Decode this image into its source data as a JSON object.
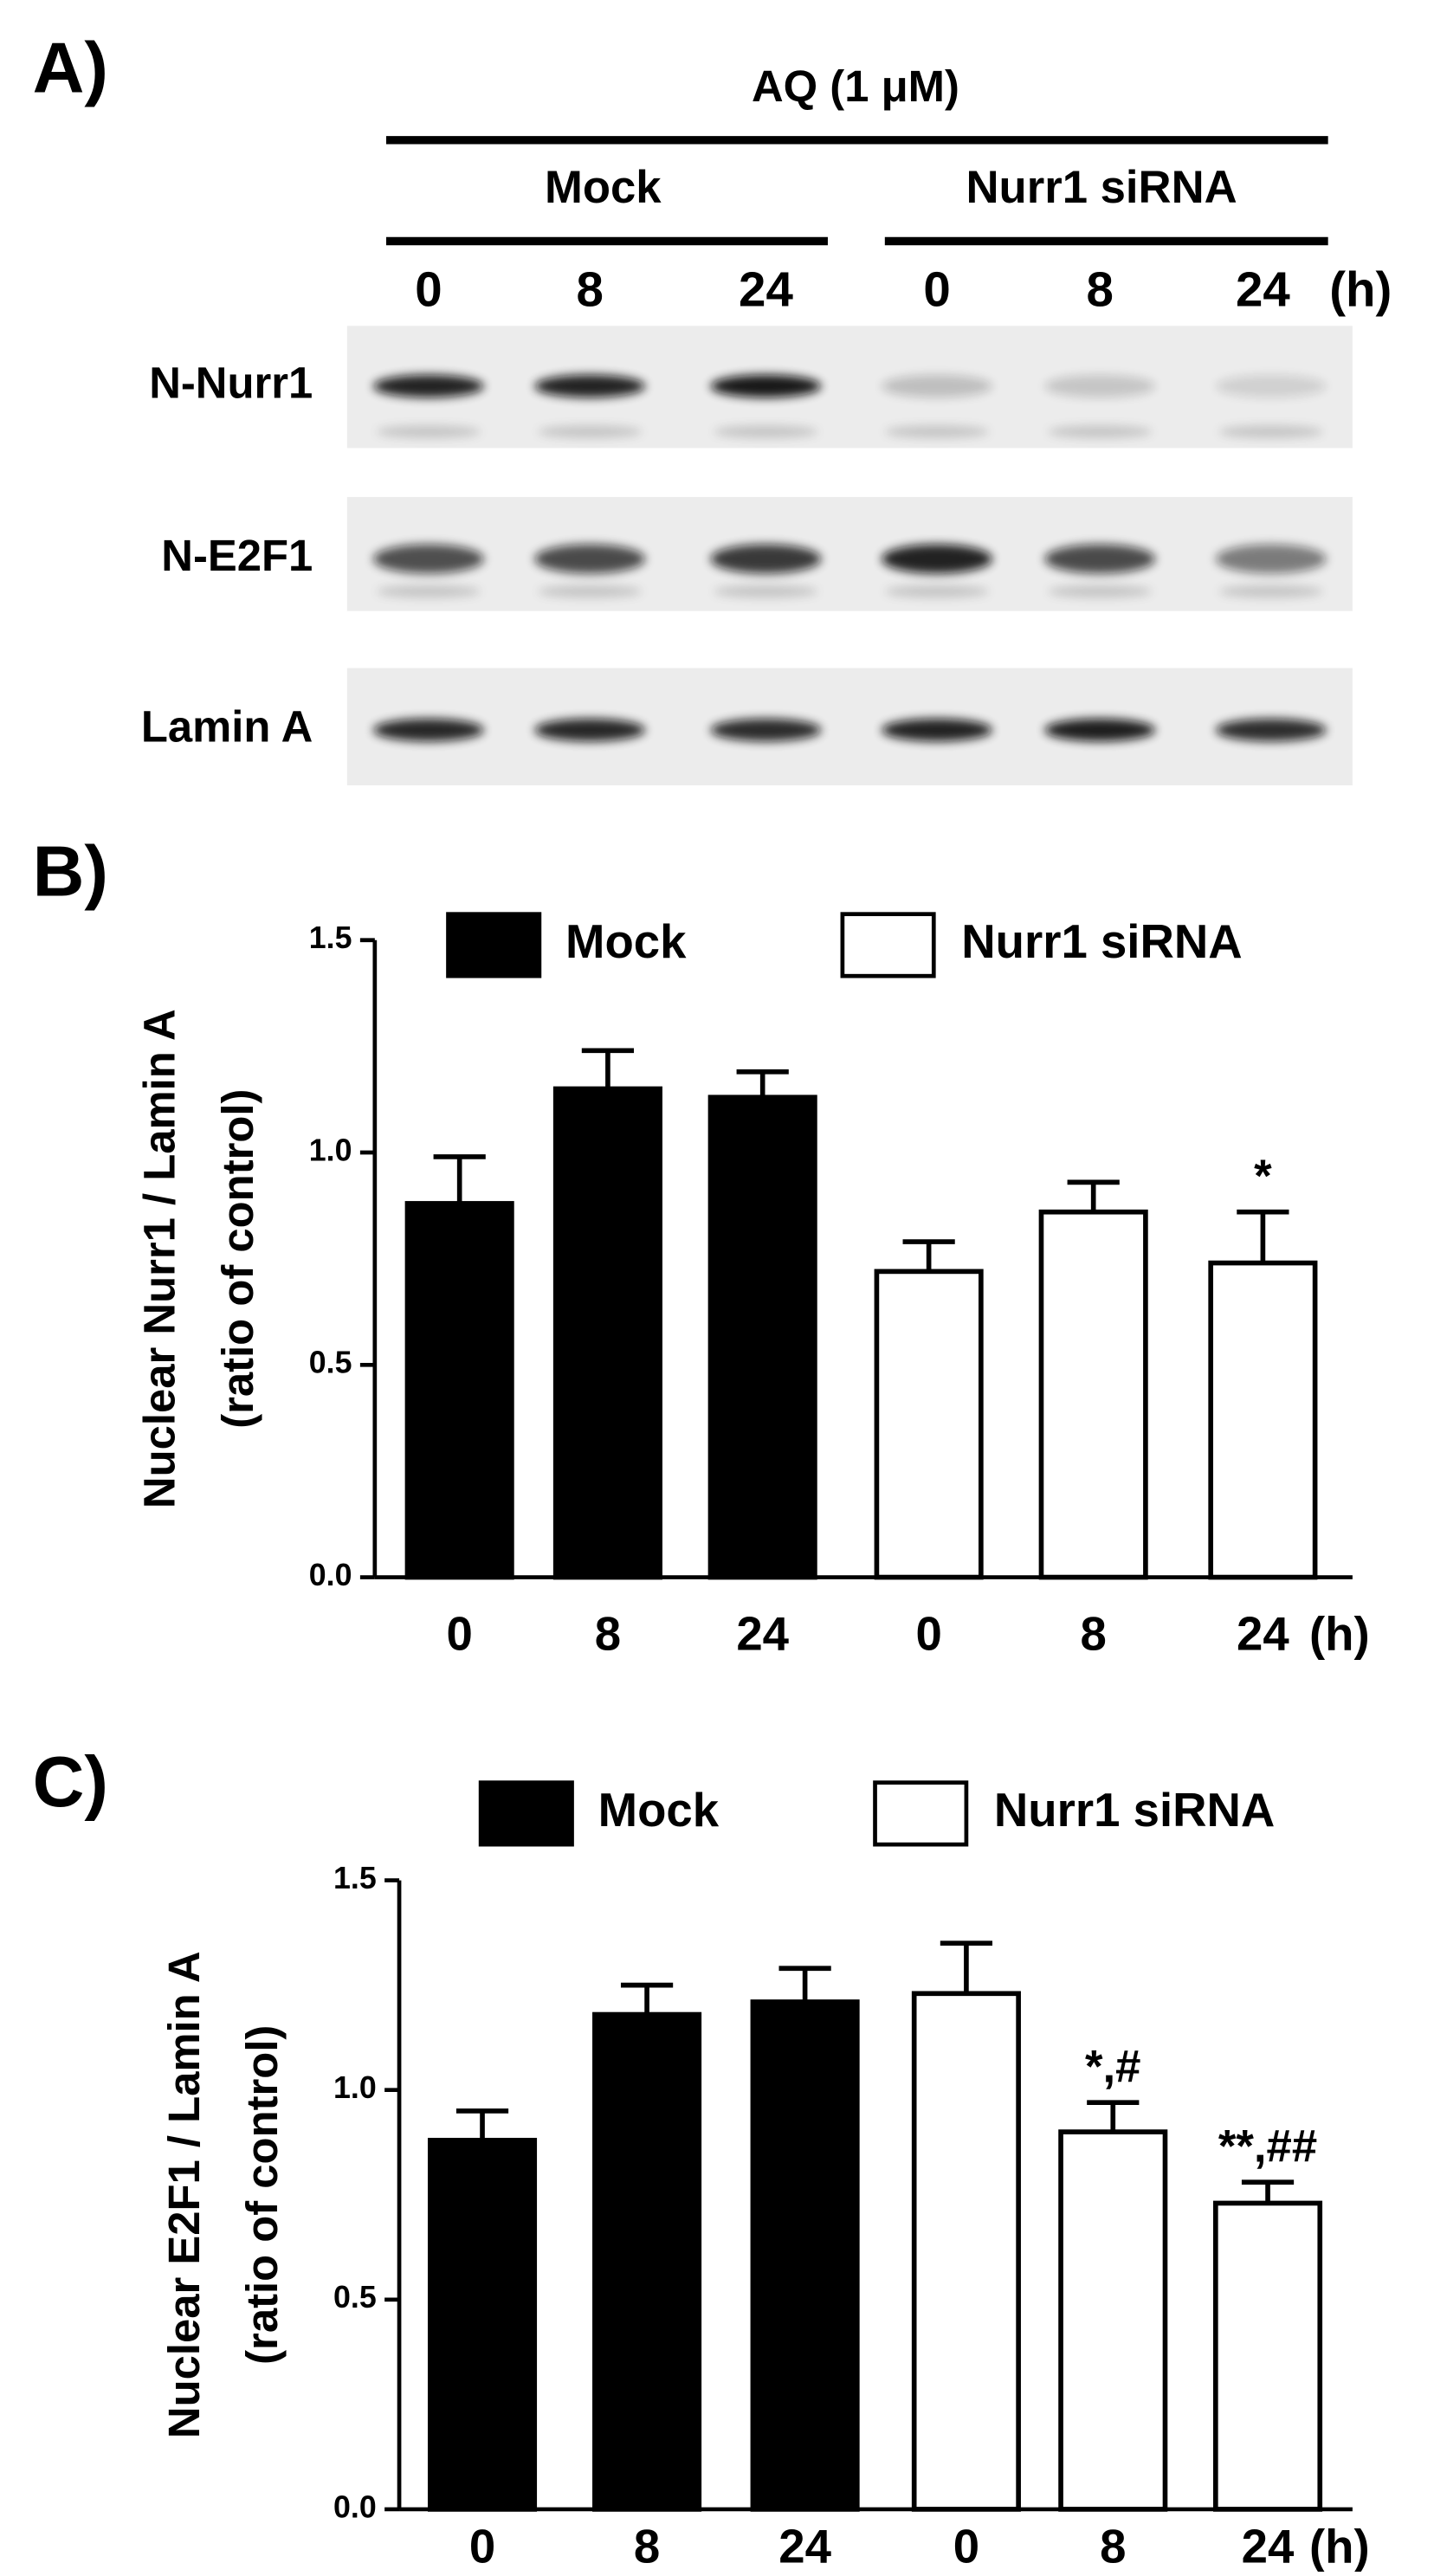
{
  "panel_a": {
    "label": "A)",
    "treatment": "AQ (1 μM)",
    "groups": [
      "Mock",
      "Nurr1 siRNA"
    ],
    "times": [
      "0",
      "8",
      "24",
      "0",
      "8",
      "24"
    ],
    "time_unit": "(h)",
    "rows": [
      "N-Nurr1",
      "N-E2F1",
      "Lamin A"
    ]
  },
  "chart_data": [
    {
      "type": "bar",
      "panel_label": "B)",
      "ylabel": [
        "Nuclear Nurr1 / Lamin A",
        "(ratio of control)"
      ],
      "xlabel": "(h)",
      "categories": [
        "0",
        "8",
        "24",
        "0",
        "8",
        "24"
      ],
      "ylim": [
        0,
        1.5
      ],
      "yticks": [
        {
          "value": 0,
          "label": "0.0"
        },
        {
          "value": 0.5,
          "label": "0.5"
        },
        {
          "value": 1,
          "label": "1.0"
        },
        {
          "value": 1.5,
          "label": "1.5"
        }
      ],
      "series": [
        {
          "name": "Mock",
          "color": "#000000",
          "values": [
            0.88,
            1.15,
            1.13,
            null,
            null,
            null
          ],
          "errors": [
            0.11,
            0.09,
            0.06,
            null,
            null,
            null
          ]
        },
        {
          "name": "Nurr1 siRNA",
          "color": "#ffffff",
          "values": [
            null,
            null,
            null,
            0.72,
            0.86,
            0.74
          ],
          "errors": [
            null,
            null,
            null,
            0.07,
            0.07,
            0.12
          ],
          "annotations": [
            null,
            null,
            null,
            null,
            null,
            "*"
          ]
        }
      ]
    },
    {
      "type": "bar",
      "panel_label": "C)",
      "ylabel": [
        "Nuclear E2F1 / Lamin A",
        "(ratio of control)"
      ],
      "xlabel": "(h)",
      "categories": [
        "0",
        "8",
        "24",
        "0",
        "8",
        "24"
      ],
      "ylim": [
        0,
        1.5
      ],
      "yticks": [
        {
          "value": 0,
          "label": "0.0"
        },
        {
          "value": 0.5,
          "label": "0.5"
        },
        {
          "value": 1,
          "label": "1.0"
        },
        {
          "value": 1.5,
          "label": "1.5"
        }
      ],
      "series": [
        {
          "name": "Mock",
          "color": "#000000",
          "values": [
            0.88,
            1.18,
            1.21,
            null,
            null,
            null
          ],
          "errors": [
            0.07,
            0.07,
            0.08,
            null,
            null,
            null
          ]
        },
        {
          "name": "Nurr1 siRNA",
          "color": "#ffffff",
          "values": [
            null,
            null,
            null,
            1.23,
            0.9,
            0.73
          ],
          "errors": [
            null,
            null,
            null,
            0.12,
            0.07,
            0.05
          ],
          "annotations": [
            null,
            null,
            null,
            null,
            "*,#",
            "**,##"
          ]
        }
      ]
    }
  ]
}
